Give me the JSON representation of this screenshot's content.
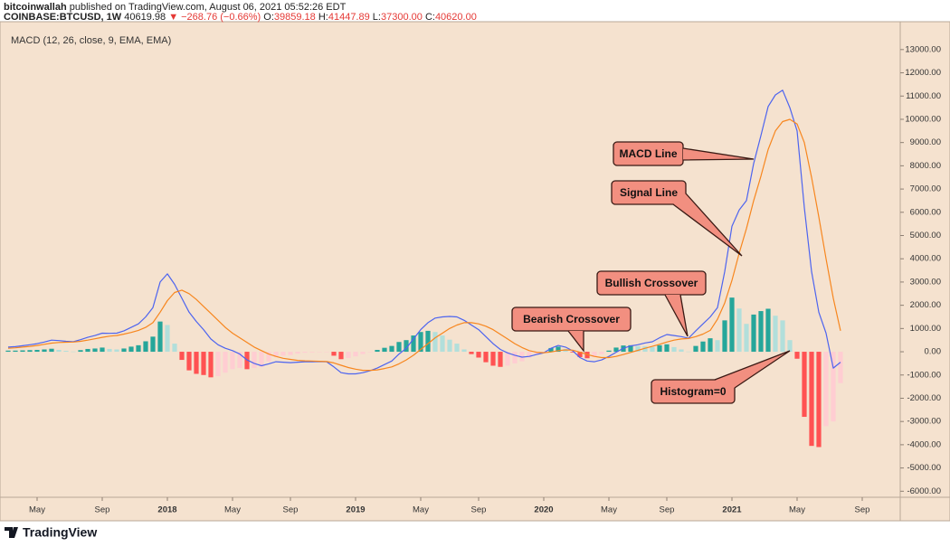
{
  "header": {
    "publisher": "bitcoinwallah",
    "published_text": "published on TradingView.com, August 06, 2021 05:52:26 EDT",
    "symbol": "COINBASE:BTCUSD, 1W",
    "price": "40619.98",
    "change": "▼ −268.76 (−0.66%)",
    "ohlc": [
      {
        "label": "O:",
        "value": "39859.18"
      },
      {
        "label": "H:",
        "value": "41447.89"
      },
      {
        "label": "L:",
        "value": "37300.00"
      },
      {
        "label": "C:",
        "value": "40620.00"
      }
    ]
  },
  "chart_data": {
    "type": "macd",
    "title": "MACD (12, 26, close, 9, EMA, EMA)",
    "categories": [
      null,
      null,
      null,
      null,
      "May",
      null,
      null,
      null,
      null,
      null,
      null,
      null,
      null,
      "Sep",
      null,
      null,
      null,
      null,
      null,
      null,
      null,
      null,
      "2018",
      null,
      null,
      null,
      null,
      null,
      null,
      null,
      null,
      "May",
      null,
      null,
      null,
      null,
      null,
      null,
      null,
      "Sep",
      null,
      null,
      null,
      null,
      null,
      null,
      null,
      null,
      "2019",
      null,
      null,
      null,
      null,
      null,
      null,
      null,
      null,
      "May",
      null,
      null,
      null,
      null,
      null,
      null,
      null,
      "Sep",
      null,
      null,
      null,
      null,
      null,
      null,
      null,
      null,
      "2020",
      null,
      null,
      null,
      null,
      null,
      null,
      null,
      null,
      "May",
      null,
      null,
      null,
      null,
      null,
      null,
      null,
      "Sep",
      null,
      null,
      null,
      null,
      null,
      null,
      null,
      null,
      "2021",
      null,
      null,
      null,
      null,
      null,
      null,
      null,
      null,
      "May",
      null,
      null,
      null,
      null,
      null,
      null,
      null,
      null,
      "Sep",
      null
    ],
    "series": [
      {
        "name": "Histogram",
        "kind": "histogram",
        "colors": [
          "#26a69a",
          "#b2dfdb",
          "#ffcdd2",
          "#ff5252"
        ],
        "values": [
          50,
          50,
          60,
          70,
          80,
          100,
          130,
          80,
          40,
          10,
          70,
          120,
          140,
          180,
          120,
          100,
          140,
          220,
          280,
          450,
          650,
          1300,
          1150,
          350,
          -350,
          -800,
          -950,
          -1000,
          -1100,
          -1050,
          -900,
          -750,
          -700,
          -750,
          -700,
          -650,
          -420,
          -230,
          -170,
          -140,
          -80,
          -40,
          -30,
          -10,
          -10,
          -170,
          -320,
          -270,
          -200,
          -100,
          -20,
          80,
          170,
          250,
          420,
          500,
          700,
          850,
          900,
          850,
          700,
          520,
          350,
          100,
          -100,
          -250,
          -450,
          -600,
          -650,
          -600,
          -500,
          -410,
          -250,
          -100,
          -10,
          160,
          220,
          120,
          -30,
          -230,
          -280,
          -230,
          -100,
          50,
          180,
          270,
          280,
          240,
          230,
          200,
          280,
          320,
          200,
          100,
          10,
          250,
          440,
          580,
          500,
          1350,
          2330,
          1860,
          1200,
          1600,
          1750,
          1850,
          1550,
          1350,
          500,
          -300,
          -2800,
          -4050,
          -4100,
          -3200,
          -3000,
          -1350,
          null,
          null,
          null,
          null
        ]
      },
      {
        "name": "MACD",
        "kind": "line",
        "color": "#4d64ef",
        "values": [
          200,
          220,
          260,
          300,
          350,
          420,
          500,
          480,
          450,
          430,
          520,
          620,
          700,
          800,
          790,
          800,
          900,
          1050,
          1200,
          1500,
          1900,
          3000,
          3350,
          2900,
          2300,
          1700,
          1300,
          950,
          550,
          300,
          150,
          50,
          -100,
          -350,
          -500,
          -600,
          -520,
          -430,
          -450,
          -470,
          -450,
          -430,
          -430,
          -420,
          -430,
          -650,
          -900,
          -950,
          -950,
          -900,
          -820,
          -700,
          -550,
          -400,
          -100,
          150,
          550,
          950,
          1250,
          1450,
          1500,
          1520,
          1500,
          1350,
          1150,
          950,
          650,
          350,
          100,
          -50,
          -150,
          -230,
          -200,
          -120,
          -50,
          150,
          270,
          200,
          40,
          -250,
          -400,
          -430,
          -350,
          -200,
          -20,
          150,
          250,
          300,
          380,
          430,
          600,
          740,
          700,
          650,
          580,
          900,
          1200,
          1500,
          1900,
          3450,
          5400,
          6100,
          6500,
          8100,
          9300,
          10550,
          11050,
          11250,
          10500,
          9500,
          6200,
          3450,
          1700,
          800,
          -700,
          -450,
          null,
          null,
          null,
          null
        ]
      },
      {
        "name": "Signal",
        "kind": "line",
        "color": "#f7861e",
        "values": [
          150,
          170,
          200,
          230,
          270,
          320,
          370,
          400,
          410,
          420,
          450,
          500,
          560,
          620,
          670,
          700,
          760,
          830,
          920,
          1050,
          1250,
          1700,
          2200,
          2550,
          2650,
          2500,
          2250,
          1950,
          1650,
          1350,
          1050,
          800,
          600,
          400,
          200,
          50,
          -100,
          -200,
          -280,
          -330,
          -370,
          -390,
          -400,
          -410,
          -420,
          -480,
          -580,
          -680,
          -750,
          -800,
          -800,
          -780,
          -720,
          -650,
          -520,
          -350,
          -150,
          100,
          350,
          600,
          800,
          1000,
          1150,
          1250,
          1250,
          1200,
          1100,
          950,
          750,
          550,
          350,
          180,
          50,
          -20,
          -40,
          -10,
          50,
          80,
          70,
          -20,
          -120,
          -200,
          -250,
          -250,
          -200,
          -120,
          -30,
          60,
          150,
          230,
          320,
          420,
          500,
          550,
          570,
          650,
          760,
          920,
          1400,
          2100,
          3070,
          4240,
          5300,
          6500,
          7550,
          8700,
          9500,
          9900,
          10000,
          9800,
          9000,
          7500,
          5800,
          4000,
          2300,
          900,
          null,
          null,
          null,
          null
        ]
      }
    ],
    "ylim": [
      -6260,
      14160
    ],
    "yticks": [
      {
        "value": 13000,
        "label": "13000.00"
      },
      {
        "value": 12000,
        "label": "12000.00"
      },
      {
        "value": 11000,
        "label": "11000.00"
      },
      {
        "value": 10000,
        "label": "10000.00"
      },
      {
        "value": 9000,
        "label": "9000.00"
      },
      {
        "value": 8000,
        "label": "8000.00"
      },
      {
        "value": 7000,
        "label": "7000.00"
      },
      {
        "value": 6000,
        "label": "6000.00"
      },
      {
        "value": 5000,
        "label": "5000.00"
      },
      {
        "value": 4000,
        "label": "4000.00"
      },
      {
        "value": 3000,
        "label": "3000.00"
      },
      {
        "value": 2000,
        "label": "2000.00"
      },
      {
        "value": 1000,
        "label": "1000.00"
      },
      {
        "value": 0,
        "label": "0.00"
      },
      {
        "value": -1000,
        "label": "-1000.00"
      },
      {
        "value": -2000,
        "label": "-2000.00"
      },
      {
        "value": -3000,
        "label": "-3000.00"
      },
      {
        "value": -4000,
        "label": "-4000.00"
      },
      {
        "value": -5000,
        "label": "-5000.00"
      },
      {
        "value": -6000,
        "label": "-6000.00"
      }
    ],
    "grid": false,
    "annotations": [
      "MACD Line",
      "Signal Line",
      "Bullish Crossover",
      "Bearish Crossover",
      "Histogram=0"
    ]
  },
  "footer": {
    "brand": "TradingView"
  }
}
